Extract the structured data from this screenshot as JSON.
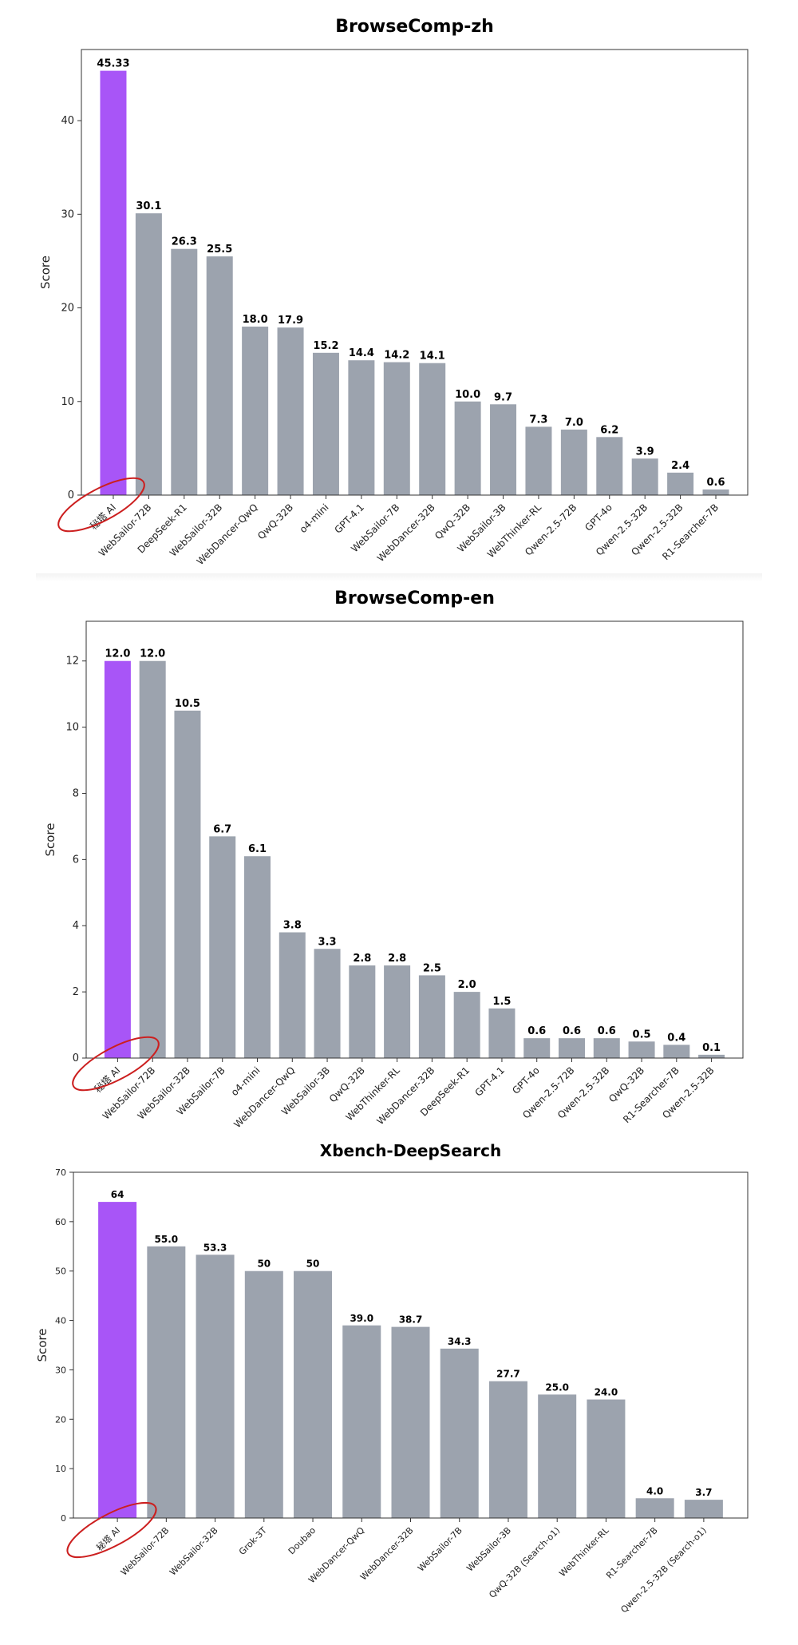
{
  "chart_data": [
    {
      "type": "bar",
      "title": "BrowseComp-zh",
      "xlabel": "",
      "ylabel": "Score",
      "ylim": [
        0,
        47.6
      ],
      "yticks": [
        0,
        10,
        20,
        30,
        40
      ],
      "categories": [
        "秘塔 AI",
        "WebSailor-72B",
        "DeepSeek-R1",
        "WebSailor-32B",
        "WebDancer-QwQ",
        "QwQ-32B",
        "o4-mini",
        "GPT-4.1",
        "WebSailor-7B",
        "WebDancer-32B",
        "QwQ-32B",
        "WebSailor-3B",
        "WebThinker-RL",
        "Qwen-2.5-72B",
        "GPT-4o",
        "Qwen-2.5-32B",
        "Qwen-2.5-32B",
        "R1-Searcher-7B"
      ],
      "values": [
        45.33,
        30.1,
        26.3,
        25.5,
        18.0,
        17.9,
        15.2,
        14.4,
        14.2,
        14.1,
        10.0,
        9.7,
        7.3,
        7.0,
        6.2,
        3.9,
        2.4,
        0.6
      ],
      "value_labels": [
        "45.33",
        "30.1",
        "26.3",
        "25.5",
        "18.0",
        "17.9",
        "15.2",
        "14.4",
        "14.2",
        "14.1",
        "10.0",
        "9.7",
        "7.3",
        "7.0",
        "6.2",
        "3.9",
        "2.4",
        "0.6"
      ],
      "highlight_index": 0
    },
    {
      "type": "bar",
      "title": "BrowseComp-en",
      "xlabel": "",
      "ylabel": "Score",
      "ylim": [
        0,
        13.2
      ],
      "yticks": [
        0,
        2,
        4,
        6,
        8,
        10,
        12
      ],
      "categories": [
        "秘塔 AI",
        "WebSailor-72B",
        "WebSailor-32B",
        "WebSailor-7B",
        "o4-mini",
        "WebDancer-QwQ",
        "WebSailor-3B",
        "QwQ-32B",
        "WebThinker-RL",
        "WebDancer-32B",
        "DeepSeek-R1",
        "GPT-4.1",
        "GPT-4o",
        "Qwen-2.5-72B",
        "Qwen-2.5-32B",
        "QwQ-32B",
        "R1-Searcher-7B",
        "Qwen-2.5-32B"
      ],
      "values": [
        12.0,
        12.0,
        10.5,
        6.7,
        6.1,
        3.8,
        3.3,
        2.8,
        2.8,
        2.5,
        2.0,
        1.5,
        0.6,
        0.6,
        0.6,
        0.5,
        0.4,
        0.1
      ],
      "value_labels": [
        "12.0",
        "12.0",
        "10.5",
        "6.7",
        "6.1",
        "3.8",
        "3.3",
        "2.8",
        "2.8",
        "2.5",
        "2.0",
        "1.5",
        "0.6",
        "0.6",
        "0.6",
        "0.5",
        "0.4",
        "0.1"
      ],
      "highlight_index": 0
    },
    {
      "type": "bar",
      "title": "Xbench-DeepSearch",
      "xlabel": "",
      "ylabel": "Score",
      "ylim": [
        0,
        70
      ],
      "yticks": [
        0,
        10,
        20,
        30,
        40,
        50,
        60,
        70
      ],
      "categories": [
        "秘塔 AI",
        "WebSailor-72B",
        "WebSailor-32B",
        "Grok-3T",
        "Doubao",
        "WebDancer-QwQ",
        "WebDancer-32B",
        "WebSailor-7B",
        "WebSailor-3B",
        "QwQ-32B (Search-o1)",
        "WebThinker-RL",
        "R1-Searcher-7B",
        "Qwen-2.5-32B (Search-o1)"
      ],
      "values": [
        64,
        55.0,
        53.3,
        50,
        50,
        39.0,
        38.7,
        34.3,
        27.7,
        25.0,
        24.0,
        4.0,
        3.7
      ],
      "value_labels": [
        "64",
        "55.0",
        "53.3",
        "50",
        "50",
        "39.0",
        "38.7",
        "34.3",
        "27.7",
        "25.0",
        "24.0",
        "4.0",
        "3.7"
      ],
      "highlight_index": 0
    }
  ],
  "colors": {
    "highlight": "#a855f7",
    "bar": "#9ca3ae",
    "circle": "#cc1f1f"
  }
}
